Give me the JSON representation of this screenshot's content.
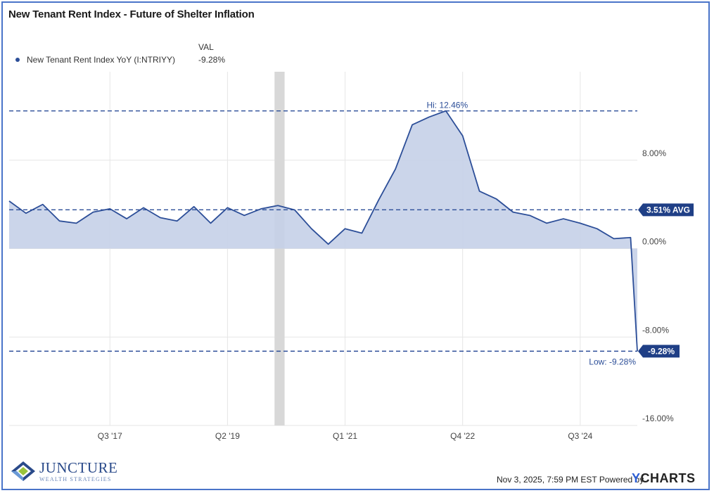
{
  "title": "New Tenant Rent Index - Future of Shelter Inflation",
  "legend": {
    "column_header": "VAL",
    "series_name": "New Tenant Rent Index YoY (I:NTRIYY)",
    "series_value": "-9.28%"
  },
  "footer": {
    "timestamp": "Nov 3, 2025, 7:59 PM EST Powered by",
    "brand_prefix": "Y",
    "brand_rest": "CHARTS"
  },
  "logo": {
    "name": "JUNCTURE",
    "tagline": "WEALTH STRATEGIES"
  },
  "colors": {
    "line": "#2c4e98",
    "fill": "#c5d0e8",
    "recession": "#d8d8d8",
    "badge": "#1f3f86"
  },
  "chart_data": {
    "type": "area",
    "x": [
      2016.0,
      2016.25,
      2016.5,
      2016.75,
      2017.0,
      2017.25,
      2017.5,
      2017.75,
      2018.0,
      2018.25,
      2018.5,
      2018.75,
      2019.0,
      2019.25,
      2019.5,
      2019.75,
      2020.0,
      2020.25,
      2020.5,
      2020.75,
      2021.0,
      2021.25,
      2021.5,
      2021.75,
      2022.0,
      2022.25,
      2022.5,
      2022.75,
      2023.0,
      2023.25,
      2023.5,
      2023.75,
      2024.0,
      2024.25,
      2024.5,
      2024.75,
      2025.0,
      2025.25
    ],
    "series": [
      {
        "name": "New Tenant Rent Index YoY (I:NTRIYY)",
        "values": [
          4.3,
          3.2,
          4.0,
          2.5,
          2.3,
          3.3,
          3.6,
          2.7,
          3.7,
          2.8,
          2.5,
          3.8,
          2.3,
          3.7,
          3.0,
          3.6,
          3.9,
          3.5,
          1.8,
          0.4,
          1.8,
          1.4,
          4.4,
          7.2,
          11.2,
          11.9,
          12.46,
          10.2,
          5.2,
          4.5,
          3.3,
          3.0,
          2.3,
          2.7,
          2.3,
          1.8,
          0.9,
          1.0
        ]
      }
    ],
    "last_point": {
      "x": 2025.35,
      "y": -9.28
    },
    "x_ticks": [
      {
        "label": "Q3 '17",
        "x": 2017.5
      },
      {
        "label": "Q2 '19",
        "x": 2019.25
      },
      {
        "label": "Q1 '21",
        "x": 2021.0
      },
      {
        "label": "Q4 '22",
        "x": 2022.75
      },
      {
        "label": "Q3 '24",
        "x": 2024.5
      }
    ],
    "y_ticks": [
      {
        "label": "8.00%",
        "value": 8
      },
      {
        "label": "0.00%",
        "value": 0
      },
      {
        "label": "-8.00%",
        "value": -8
      },
      {
        "label": "-16.00%",
        "value": -16
      }
    ],
    "xlim": [
      2016.0,
      2025.35
    ],
    "ylim": [
      -16,
      16
    ],
    "recession_band": [
      2019.95,
      2020.1
    ],
    "reference_lines": {
      "high": {
        "value": 12.46,
        "label": "Hi: 12.46%"
      },
      "avg": {
        "value": 3.51,
        "label": "3.51% AVG"
      },
      "low": {
        "value": -9.28,
        "label": "Low: -9.28%"
      }
    },
    "end_badge": "-9.28%",
    "grid": true
  }
}
